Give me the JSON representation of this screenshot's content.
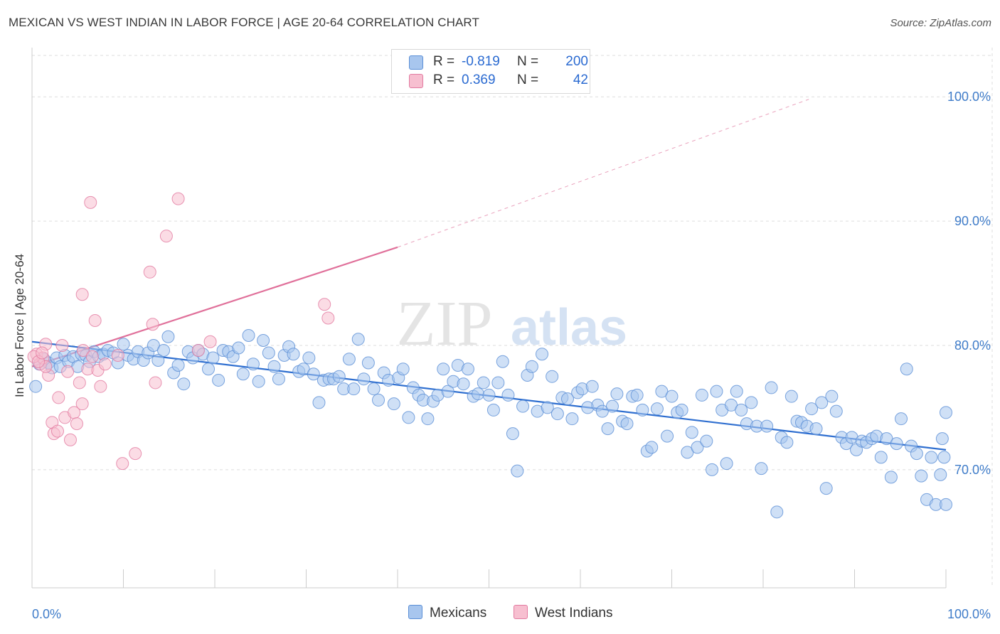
{
  "title": "MEXICAN VS WEST INDIAN IN LABOR FORCE | AGE 20-64 CORRELATION CHART",
  "source": "Source: ZipAtlas.com",
  "watermark": {
    "zip": "ZIP",
    "atlas": "atlas"
  },
  "legend": {
    "rows": [
      {
        "r_label": "R =",
        "r_value": "-0.819",
        "n_label": "N =",
        "n_value": "200",
        "color": "#a8c6ee",
        "stroke": "#5b8fd6"
      },
      {
        "r_label": "R =",
        "r_value": "0.369",
        "n_label": "N =",
        "n_value": "42",
        "color": "#f7bfd0",
        "stroke": "#e27aa0"
      }
    ]
  },
  "bottom_legend": [
    {
      "label": "Mexicans",
      "color": "#a8c6ee",
      "stroke": "#5b8fd6"
    },
    {
      "label": "West Indians",
      "color": "#f7bfd0",
      "stroke": "#e27aa0"
    }
  ],
  "chart_data": {
    "type": "scatter",
    "title": "MEXICAN VS WEST INDIAN IN LABOR FORCE | AGE 20-64 CORRELATION CHART",
    "xlabel": "",
    "ylabel": "In Labor Force | Age 20-64",
    "xlim": [
      0,
      100
    ],
    "ylim": [
      60.5,
      103.5
    ],
    "x_tick_labels": [
      "0.0%",
      "100.0%"
    ],
    "y_ticks": [
      70,
      80,
      90,
      100
    ],
    "y_tick_labels": [
      "70.0%",
      "80.0%",
      "90.0%",
      "100.0%"
    ],
    "grid": true,
    "series": [
      {
        "name": "Mexicans",
        "color": "#a8c6ee",
        "stroke": "#5b8fd6",
        "trend": {
          "x0": 0,
          "y0": 80.3,
          "x1": 100,
          "y1": 71.6
        },
        "points": [
          [
            0.4,
            76.7
          ],
          [
            0.8,
            78.5
          ],
          [
            1.3,
            78.9
          ],
          [
            1.8,
            78.6
          ],
          [
            2.2,
            78.2
          ],
          [
            2.7,
            79.0
          ],
          [
            3.1,
            78.3
          ],
          [
            3.6,
            79.2
          ],
          [
            4.0,
            78.7
          ],
          [
            4.5,
            79.1
          ],
          [
            5.0,
            78.3
          ],
          [
            5.4,
            79.3
          ],
          [
            5.9,
            79.2
          ],
          [
            6.3,
            78.7
          ],
          [
            6.8,
            79.5
          ],
          [
            7.3,
            79.1
          ],
          [
            7.8,
            79.3
          ],
          [
            8.3,
            79.6
          ],
          [
            8.9,
            79.4
          ],
          [
            9.4,
            78.6
          ],
          [
            10.0,
            80.1
          ],
          [
            10.5,
            79.2
          ],
          [
            11.1,
            78.9
          ],
          [
            11.6,
            79.5
          ],
          [
            12.2,
            78.8
          ],
          [
            12.7,
            79.4
          ],
          [
            13.3,
            80.0
          ],
          [
            13.8,
            78.8
          ],
          [
            14.4,
            79.6
          ],
          [
            14.9,
            80.7
          ],
          [
            15.5,
            77.8
          ],
          [
            16.0,
            78.4
          ],
          [
            16.6,
            76.9
          ],
          [
            17.1,
            79.5
          ],
          [
            17.6,
            79.0
          ],
          [
            18.2,
            79.6
          ],
          [
            18.7,
            79.3
          ],
          [
            19.3,
            78.1
          ],
          [
            19.8,
            79.0
          ],
          [
            20.4,
            77.2
          ],
          [
            20.9,
            79.6
          ],
          [
            21.5,
            79.5
          ],
          [
            22.0,
            79.1
          ],
          [
            22.6,
            79.8
          ],
          [
            23.1,
            77.7
          ],
          [
            23.7,
            80.8
          ],
          [
            24.2,
            78.5
          ],
          [
            24.8,
            77.1
          ],
          [
            25.3,
            80.4
          ],
          [
            25.9,
            79.4
          ],
          [
            26.5,
            78.3
          ],
          [
            27.0,
            77.3
          ],
          [
            27.6,
            79.2
          ],
          [
            28.1,
            79.9
          ],
          [
            28.6,
            79.3
          ],
          [
            29.2,
            77.9
          ],
          [
            29.7,
            78.1
          ],
          [
            30.3,
            79.0
          ],
          [
            30.8,
            77.7
          ],
          [
            31.4,
            75.4
          ],
          [
            31.9,
            77.2
          ],
          [
            32.5,
            77.3
          ],
          [
            33.0,
            77.3
          ],
          [
            33.6,
            77.5
          ],
          [
            34.1,
            76.5
          ],
          [
            34.7,
            78.9
          ],
          [
            35.2,
            76.5
          ],
          [
            35.7,
            80.5
          ],
          [
            36.3,
            77.3
          ],
          [
            36.8,
            78.6
          ],
          [
            37.4,
            76.5
          ],
          [
            37.9,
            75.6
          ],
          [
            38.5,
            77.8
          ],
          [
            39.0,
            77.2
          ],
          [
            39.6,
            75.3
          ],
          [
            40.1,
            77.4
          ],
          [
            40.6,
            78.1
          ],
          [
            41.2,
            74.2
          ],
          [
            41.7,
            76.6
          ],
          [
            42.3,
            76.0
          ],
          [
            42.8,
            75.6
          ],
          [
            43.3,
            74.1
          ],
          [
            43.9,
            75.5
          ],
          [
            44.4,
            76.0
          ],
          [
            45.0,
            78.1
          ],
          [
            45.5,
            76.3
          ],
          [
            46.1,
            77.1
          ],
          [
            46.6,
            78.4
          ],
          [
            47.2,
            76.9
          ],
          [
            47.7,
            78.1
          ],
          [
            48.3,
            75.9
          ],
          [
            48.8,
            76.1
          ],
          [
            49.4,
            77.0
          ],
          [
            50.0,
            76.0
          ],
          [
            50.5,
            74.8
          ],
          [
            51.0,
            77.0
          ],
          [
            51.5,
            78.7
          ],
          [
            52.1,
            76.0
          ],
          [
            52.6,
            72.9
          ],
          [
            53.1,
            69.9
          ],
          [
            53.7,
            75.1
          ],
          [
            54.2,
            77.6
          ],
          [
            54.7,
            78.3
          ],
          [
            55.3,
            74.7
          ],
          [
            55.8,
            79.3
          ],
          [
            56.4,
            75.0
          ],
          [
            56.9,
            77.5
          ],
          [
            57.5,
            74.5
          ],
          [
            58.0,
            75.8
          ],
          [
            58.6,
            75.7
          ],
          [
            59.1,
            74.1
          ],
          [
            59.7,
            76.2
          ],
          [
            60.2,
            76.5
          ],
          [
            60.8,
            75.0
          ],
          [
            61.3,
            76.7
          ],
          [
            61.9,
            75.2
          ],
          [
            62.4,
            74.7
          ],
          [
            63.0,
            73.3
          ],
          [
            63.5,
            75.1
          ],
          [
            64.0,
            76.1
          ],
          [
            64.6,
            73.9
          ],
          [
            65.1,
            73.7
          ],
          [
            65.7,
            75.9
          ],
          [
            66.2,
            76.0
          ],
          [
            66.8,
            74.8
          ],
          [
            67.3,
            71.5
          ],
          [
            67.8,
            71.8
          ],
          [
            68.4,
            74.9
          ],
          [
            68.9,
            76.3
          ],
          [
            69.5,
            72.7
          ],
          [
            70.0,
            75.9
          ],
          [
            70.6,
            74.6
          ],
          [
            71.1,
            74.8
          ],
          [
            71.7,
            71.4
          ],
          [
            72.2,
            73.0
          ],
          [
            72.8,
            71.8
          ],
          [
            73.3,
            76.0
          ],
          [
            73.8,
            72.3
          ],
          [
            74.4,
            70.0
          ],
          [
            74.9,
            76.3
          ],
          [
            75.5,
            74.8
          ],
          [
            76.0,
            70.5
          ],
          [
            76.5,
            75.2
          ],
          [
            77.1,
            76.3
          ],
          [
            77.6,
            74.8
          ],
          [
            78.2,
            73.7
          ],
          [
            78.7,
            75.4
          ],
          [
            79.3,
            73.5
          ],
          [
            79.8,
            70.1
          ],
          [
            80.4,
            73.5
          ],
          [
            80.9,
            76.6
          ],
          [
            81.5,
            66.6
          ],
          [
            82.0,
            72.6
          ],
          [
            82.6,
            72.2
          ],
          [
            83.1,
            75.9
          ],
          [
            83.7,
            73.9
          ],
          [
            84.2,
            73.8
          ],
          [
            84.8,
            73.5
          ],
          [
            85.3,
            74.9
          ],
          [
            85.8,
            73.3
          ],
          [
            86.4,
            75.4
          ],
          [
            86.9,
            68.5
          ],
          [
            87.5,
            75.9
          ],
          [
            88.0,
            74.7
          ],
          [
            88.6,
            72.6
          ],
          [
            89.1,
            72.1
          ],
          [
            89.7,
            72.6
          ],
          [
            90.2,
            71.6
          ],
          [
            90.8,
            72.3
          ],
          [
            91.3,
            72.2
          ],
          [
            91.9,
            72.5
          ],
          [
            92.4,
            72.7
          ],
          [
            92.9,
            71.0
          ],
          [
            93.5,
            72.5
          ],
          [
            94.0,
            69.4
          ],
          [
            94.6,
            72.1
          ],
          [
            95.1,
            74.1
          ],
          [
            95.7,
            78.1
          ],
          [
            96.2,
            71.9
          ],
          [
            96.8,
            71.3
          ],
          [
            97.3,
            69.5
          ],
          [
            97.9,
            67.6
          ],
          [
            98.4,
            71.0
          ],
          [
            98.9,
            67.2
          ],
          [
            99.4,
            69.6
          ],
          [
            99.6,
            72.5
          ],
          [
            99.8,
            71.0
          ],
          [
            100.0,
            74.6
          ],
          [
            100.0,
            67.2
          ]
        ]
      },
      {
        "name": "West Indians",
        "color": "#f7bfd0",
        "stroke": "#e27aa0",
        "trend": {
          "x0": 0,
          "y0": 78.3,
          "x1": 40,
          "y1": 87.9
        },
        "trend_extension": {
          "x0": 40,
          "y0": 87.9,
          "x1": 85,
          "y1": 99.8
        },
        "points": [
          [
            0.5,
            79.3
          ],
          [
            0.9,
            78.5
          ],
          [
            1.2,
            79.0
          ],
          [
            1.5,
            80.1
          ],
          [
            1.8,
            77.6
          ],
          [
            1.5,
            78.3
          ],
          [
            2.2,
            73.8
          ],
          [
            2.4,
            72.9
          ],
          [
            2.8,
            73.1
          ],
          [
            2.9,
            75.8
          ],
          [
            3.3,
            80.0
          ],
          [
            3.6,
            74.2
          ],
          [
            3.9,
            77.9
          ],
          [
            4.2,
            72.4
          ],
          [
            4.6,
            74.6
          ],
          [
            4.9,
            73.7
          ],
          [
            5.2,
            77.0
          ],
          [
            5.5,
            75.3
          ],
          [
            5.5,
            84.1
          ],
          [
            5.6,
            79.6
          ],
          [
            6.1,
            78.1
          ],
          [
            6.4,
            91.5
          ],
          [
            6.6,
            79.1
          ],
          [
            6.9,
            82.0
          ],
          [
            7.2,
            78.0
          ],
          [
            7.5,
            76.7
          ],
          [
            8.0,
            78.5
          ],
          [
            9.4,
            79.2
          ],
          [
            9.9,
            70.5
          ],
          [
            11.3,
            71.3
          ],
          [
            12.9,
            85.9
          ],
          [
            13.2,
            81.7
          ],
          [
            13.5,
            77.0
          ],
          [
            14.7,
            88.8
          ],
          [
            16.0,
            91.8
          ],
          [
            18.2,
            79.6
          ],
          [
            19.5,
            80.3
          ],
          [
            32.0,
            83.3
          ],
          [
            32.4,
            82.2
          ],
          [
            0.2,
            79.1
          ],
          [
            0.7,
            78.7
          ],
          [
            1.1,
            79.4
          ]
        ]
      }
    ]
  }
}
